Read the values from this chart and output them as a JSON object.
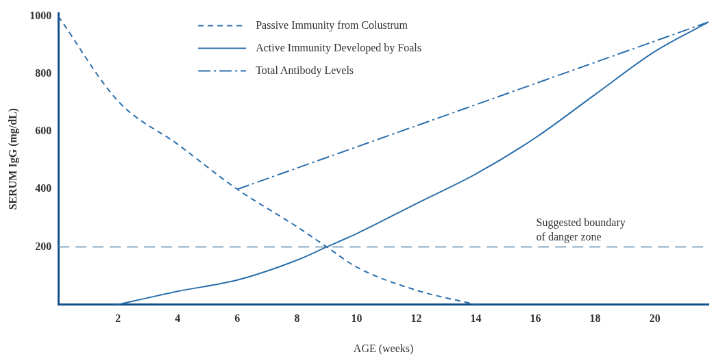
{
  "chart_data": {
    "type": "line",
    "xlabel": "AGE (weeks)",
    "ylabel": "SERUM IgG (mg/dL)",
    "xlim": [
      0,
      21.8
    ],
    "ylim": [
      0,
      1010
    ],
    "xticks": [
      2,
      4,
      6,
      8,
      10,
      12,
      14,
      16,
      18,
      20
    ],
    "yticks": [
      200,
      400,
      600,
      800,
      1000
    ],
    "grid": false,
    "legend": "top",
    "marker": "none",
    "series": [
      {
        "name": "Passive Immunity from Colustrum",
        "color": "#2a6fad",
        "line_style": "dashed",
        "x": [
          0,
          2,
          4,
          6,
          8,
          9,
          10,
          12,
          14
        ],
        "values": [
          1000,
          706,
          556,
          400,
          270,
          200,
          130,
          50,
          0
        ]
      },
      {
        "name": "Active Immunity Developed by Foals",
        "color": "#2a6fad",
        "line_style": "solid",
        "x": [
          2,
          4,
          6,
          8,
          9,
          10,
          12,
          14,
          16,
          18,
          20,
          21.8
        ],
        "values": [
          0,
          46,
          85,
          154,
          200,
          246,
          350,
          453,
          579,
          729,
          878,
          980
        ]
      },
      {
        "name": "Total Antibody Levels",
        "color": "#2a6fad",
        "line_style": "dashdot",
        "x": [
          6,
          21.8
        ],
        "values": [
          400,
          980
        ]
      }
    ],
    "ref_lines": [
      {
        "axis": "y",
        "value": 200,
        "label": "Suggested boundary\nof danger zone",
        "color": "#5b87aa",
        "line_style": "dashed"
      }
    ]
  }
}
